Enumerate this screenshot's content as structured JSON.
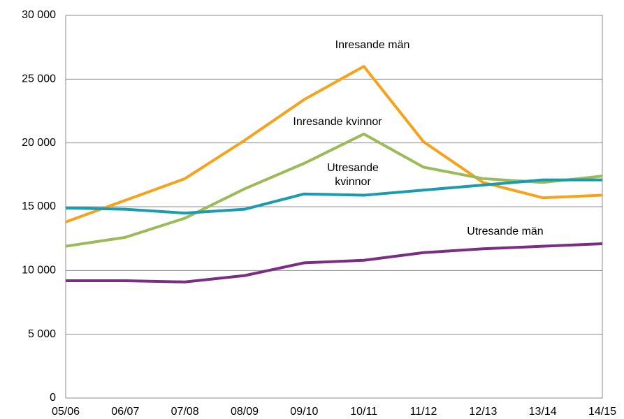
{
  "chart_data": {
    "type": "line",
    "categories": [
      "05/06",
      "06/07",
      "07/08",
      "08/09",
      "09/10",
      "10/11",
      "11/12",
      "12/13",
      "13/14",
      "14/15"
    ],
    "series": [
      {
        "name": "Inresande män",
        "color": "#f7a21b",
        "values": [
          13800,
          15500,
          17200,
          20200,
          23400,
          26000,
          20100,
          16900,
          15700,
          15900
        ]
      },
      {
        "name": "Inresande kvinnor",
        "color": "#9bbb59",
        "values": [
          11900,
          12600,
          14100,
          16400,
          18400,
          20700,
          18100,
          17200,
          16900,
          17400
        ]
      },
      {
        "name": "Utresande kvinnor",
        "color": "#1a9bb0",
        "values": [
          14900,
          14800,
          14500,
          14800,
          16000,
          15900,
          16300,
          16700,
          17100,
          17100
        ]
      },
      {
        "name": "Utresande män",
        "color": "#7b2d83",
        "values": [
          9200,
          9200,
          9100,
          9600,
          10600,
          10800,
          11400,
          11700,
          11900,
          12100
        ]
      }
    ],
    "ylim": [
      0,
      30000
    ],
    "yticks": [
      {
        "value": 0,
        "label": "0"
      },
      {
        "value": 5000,
        "label": "5 000"
      },
      {
        "value": 10000,
        "label": "10 000"
      },
      {
        "value": 15000,
        "label": "15 000"
      },
      {
        "value": 20000,
        "label": "20 000"
      },
      {
        "value": 25000,
        "label": "25 000"
      },
      {
        "value": 30000,
        "label": "30 000"
      }
    ],
    "grid": true
  }
}
